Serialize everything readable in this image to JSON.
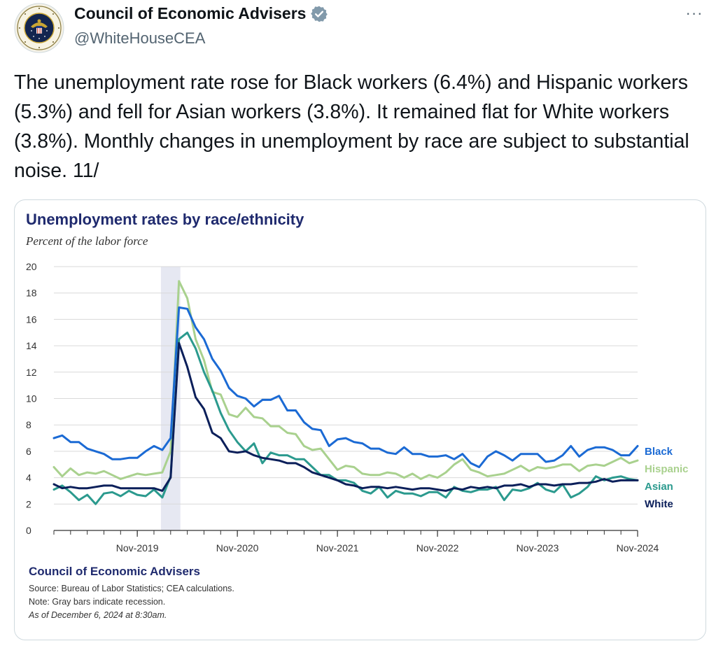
{
  "tweet": {
    "author_name": "Council of Economic Advisers",
    "handle": "@WhiteHouseCEA",
    "more_label": "···",
    "text": "The unemployment rate rose for Black workers (6.4%) and Hispanic workers (5.3%) and fell for Asian workers (3.8%). It remained flat for White workers (3.8%). Monthly changes in unemployment by race are subject to substantial noise. 11/",
    "avatar_icon": "presidential-seal-icon",
    "verified_icon": "verified-badge-icon",
    "seal_text": "EXECUTIVE OFFICE OF THE PRESIDENT OF THE UNITED STATES"
  },
  "chart_data": {
    "type": "line",
    "title": "Unemployment rates by race/ethnicity",
    "subtitle": "Percent of the labor force",
    "ylim": [
      0,
      20
    ],
    "y_ticks": [
      "0",
      "2",
      "4",
      "6",
      "8",
      "10",
      "12",
      "14",
      "16",
      "18",
      "20"
    ],
    "x_tick_labels": [
      "Nov-2019",
      "Nov-2020",
      "Nov-2021",
      "Nov-2022",
      "Nov-2023",
      "Nov-2024"
    ],
    "x_range": [
      "Jan-2019",
      "Nov-2024"
    ],
    "recession_band": [
      "Feb-2020",
      "Apr-2020"
    ],
    "grid": true,
    "legend_placement": "right, at line ends",
    "series": [
      {
        "name": "Black",
        "color": "#1b6ad4",
        "values": [
          7.0,
          7.2,
          6.7,
          6.7,
          6.2,
          6.0,
          5.8,
          5.4,
          5.4,
          5.5,
          5.5,
          6.0,
          6.4,
          6.1,
          7.0,
          16.9,
          16.8,
          15.4,
          14.5,
          13.0,
          12.1,
          10.8,
          10.2,
          10.0,
          9.4,
          9.9,
          9.9,
          10.2,
          9.1,
          9.1,
          8.2,
          7.7,
          7.6,
          6.4,
          6.9,
          7.0,
          6.7,
          6.6,
          6.2,
          6.2,
          5.9,
          5.8,
          6.3,
          5.8,
          5.8,
          5.6,
          5.6,
          5.7,
          5.4,
          5.8,
          5.1,
          4.8,
          5.6,
          6.0,
          5.7,
          5.3,
          5.8,
          5.8,
          5.8,
          5.2,
          5.3,
          5.7,
          6.4,
          5.6,
          6.1,
          6.3,
          6.3,
          6.1,
          5.7,
          5.7,
          6.4
        ]
      },
      {
        "name": "Hispanic",
        "color": "#a9d18e",
        "values": [
          4.8,
          4.1,
          4.7,
          4.2,
          4.4,
          4.3,
          4.5,
          4.2,
          3.9,
          4.1,
          4.3,
          4.2,
          4.3,
          4.4,
          6.0,
          18.9,
          17.6,
          14.5,
          12.9,
          10.5,
          10.3,
          8.8,
          8.6,
          9.3,
          8.6,
          8.5,
          7.9,
          7.9,
          7.4,
          7.3,
          6.4,
          6.1,
          6.2,
          5.4,
          4.6,
          4.9,
          4.8,
          4.3,
          4.2,
          4.2,
          4.4,
          4.3,
          4.0,
          4.3,
          3.9,
          4.2,
          4.0,
          4.4,
          5.0,
          5.4,
          4.6,
          4.4,
          4.1,
          4.2,
          4.3,
          4.6,
          4.9,
          4.5,
          4.8,
          4.7,
          4.8,
          5.0,
          5.0,
          4.5,
          4.9,
          5.0,
          4.9,
          5.2,
          5.5,
          5.1,
          5.3
        ]
      },
      {
        "name": "Asian",
        "color": "#2b9a8e",
        "values": [
          3.1,
          3.4,
          2.9,
          2.3,
          2.7,
          2.0,
          2.8,
          2.9,
          2.6,
          3.0,
          2.7,
          2.6,
          3.1,
          2.5,
          4.1,
          14.5,
          15.0,
          13.8,
          12.0,
          10.6,
          8.9,
          7.6,
          6.7,
          6.0,
          6.6,
          5.1,
          5.9,
          5.7,
          5.7,
          5.4,
          5.4,
          4.8,
          4.2,
          4.2,
          3.8,
          3.8,
          3.6,
          3.0,
          2.8,
          3.3,
          2.5,
          3.0,
          2.8,
          2.8,
          2.6,
          2.9,
          2.9,
          2.5,
          3.3,
          3.0,
          2.9,
          3.1,
          3.1,
          3.3,
          2.3,
          3.1,
          3.0,
          3.2,
          3.6,
          3.1,
          2.9,
          3.5,
          2.5,
          2.8,
          3.3,
          4.1,
          3.8,
          4.0,
          4.1,
          3.9,
          3.8
        ]
      },
      {
        "name": "White",
        "color": "#0b1f5a",
        "values": [
          3.5,
          3.2,
          3.3,
          3.2,
          3.2,
          3.3,
          3.4,
          3.4,
          3.2,
          3.2,
          3.2,
          3.2,
          3.2,
          3.0,
          4.0,
          14.2,
          12.4,
          10.1,
          9.2,
          7.4,
          7.0,
          6.0,
          5.9,
          6.0,
          5.7,
          5.5,
          5.4,
          5.3,
          5.1,
          5.1,
          4.8,
          4.4,
          4.2,
          4.0,
          3.8,
          3.5,
          3.4,
          3.2,
          3.3,
          3.3,
          3.2,
          3.3,
          3.2,
          3.1,
          3.2,
          3.2,
          3.1,
          3.0,
          3.2,
          3.1,
          3.3,
          3.2,
          3.3,
          3.2,
          3.4,
          3.4,
          3.5,
          3.3,
          3.5,
          3.5,
          3.4,
          3.5,
          3.5,
          3.6,
          3.6,
          3.7,
          3.9,
          3.7,
          3.8,
          3.8,
          3.8
        ]
      }
    ],
    "footer": {
      "org": "Council of Economic Advisers",
      "source": "Source: Bureau of Labor Statistics; CEA calculations.",
      "note": "Note: Gray bars indicate recession.",
      "as_of": "As of December 6, 2024 at 8:30am."
    }
  }
}
